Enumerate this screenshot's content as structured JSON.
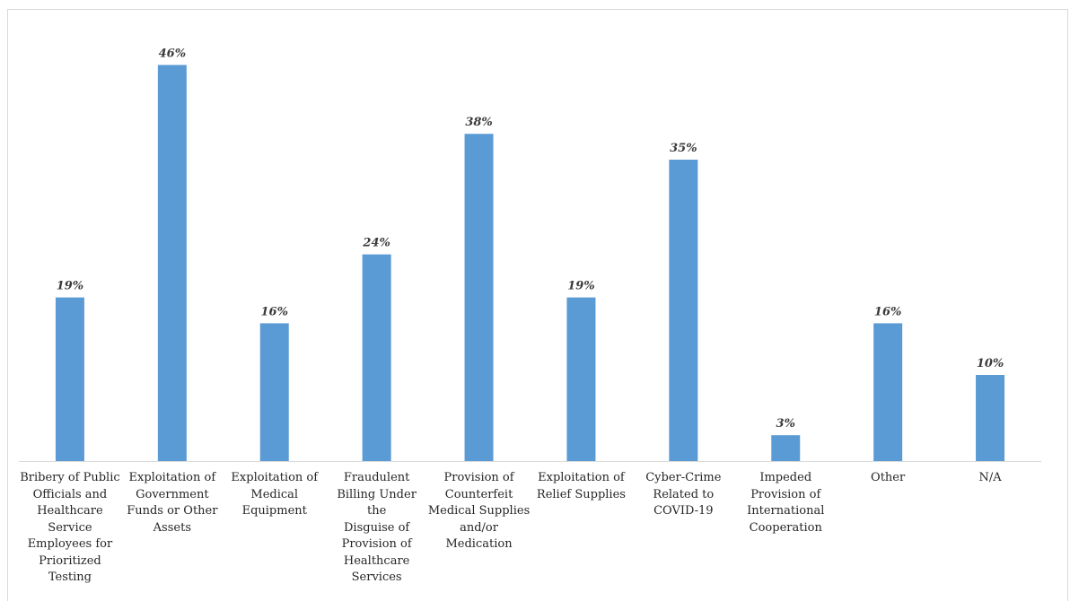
{
  "chart_data": {
    "type": "bar",
    "title": "",
    "xlabel": "",
    "ylabel": "",
    "ylim": [
      0,
      50
    ],
    "grid": false,
    "legend": "none",
    "bar_color": "#5b9bd5",
    "value_format": "{v}%",
    "categories": [
      [
        "Bribery of Public",
        "Officials and",
        "Healthcare",
        "Service",
        "Employees for",
        "Prioritized",
        "Testing"
      ],
      [
        "Exploitation of",
        "Government",
        "Funds or Other",
        "Assets"
      ],
      [
        "Exploitation of",
        "Medical",
        "Equipment"
      ],
      [
        "Fraudulent",
        "Billing Under the",
        "Disguise of",
        "Provision of",
        "Healthcare",
        "Services"
      ],
      [
        "Provision of",
        "Counterfeit",
        "Medical Supplies",
        "and/or",
        "Medication"
      ],
      [
        "Exploitation of",
        "Relief Supplies"
      ],
      [
        "Cyber-Crime",
        "Related to",
        "COVID-19"
      ],
      [
        "Impeded",
        "Provision of",
        "International",
        "Cooperation"
      ],
      [
        "Other"
      ],
      [
        "N/A"
      ]
    ],
    "values": [
      19,
      46,
      16,
      24,
      38,
      19,
      35,
      3,
      16,
      10
    ],
    "data_labels": [
      "19%",
      "46%",
      "16%",
      "24%",
      "38%",
      "19%",
      "35%",
      "3%",
      "16%",
      "10%"
    ]
  }
}
